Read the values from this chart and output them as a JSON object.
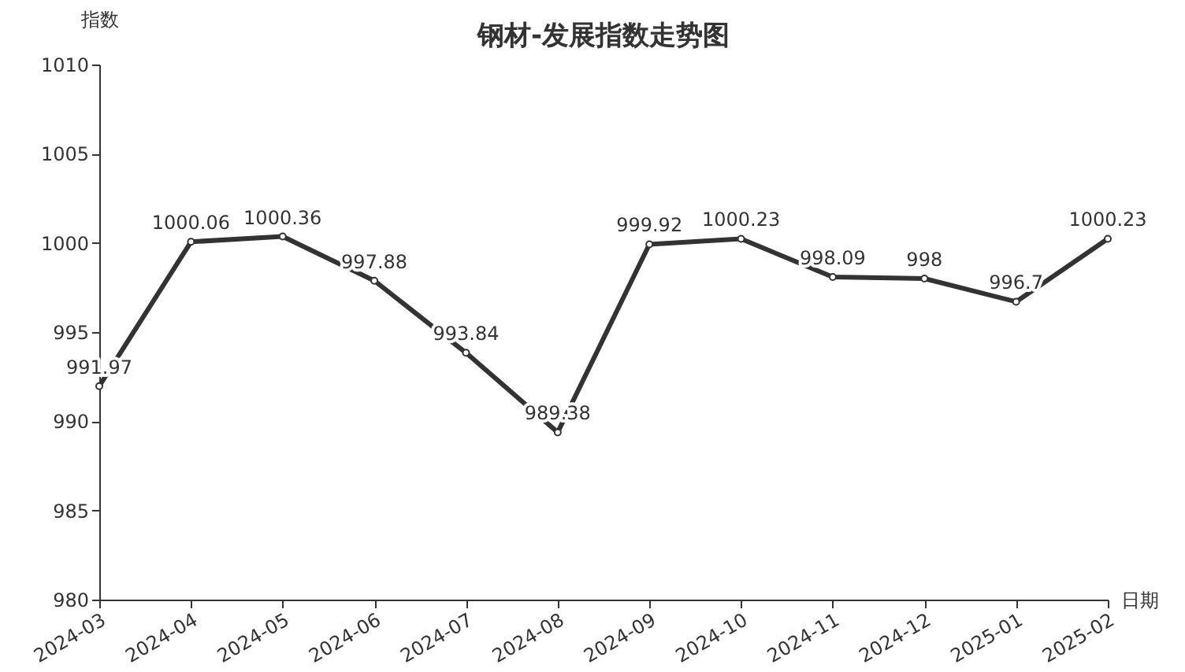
{
  "chart_data": {
    "type": "line",
    "title": "钢材-发展指数走势图",
    "xlabel": "日期",
    "ylabel": "指数",
    "categories": [
      "2024-03",
      "2024-04",
      "2024-05",
      "2024-06",
      "2024-07",
      "2024-08",
      "2024-09",
      "2024-10",
      "2024-11",
      "2024-12",
      "2025-01",
      "2025-02"
    ],
    "series": [
      {
        "color": "#333333",
        "values": [
          991.97,
          1000.06,
          1000.36,
          997.88,
          993.84,
          989.38,
          999.92,
          1000.23,
          998.09,
          998,
          996.7,
          1000.23
        ]
      }
    ],
    "ylim": [
      980,
      1010
    ],
    "yticks": [
      980,
      985,
      990,
      995,
      1000,
      1005,
      1010
    ],
    "data_labels": true,
    "marker": "circle",
    "line_style": "solid"
  }
}
